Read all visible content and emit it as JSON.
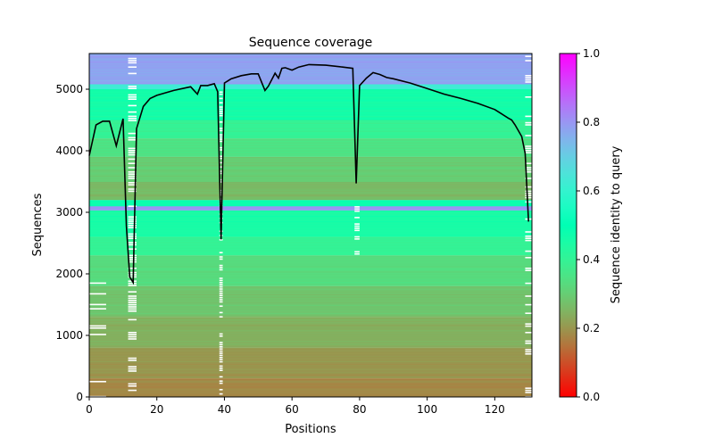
{
  "chart_data": {
    "type": "heatmap",
    "title": "Sequence coverage",
    "xlabel": "Positions",
    "ylabel": "Sequences",
    "xlim": [
      0,
      131
    ],
    "ylim": [
      0,
      5580
    ],
    "x_ticks": [
      0,
      20,
      40,
      60,
      80,
      100,
      120
    ],
    "y_ticks": [
      0,
      1000,
      2000,
      3000,
      4000,
      5000
    ],
    "grid": false,
    "legend": "none",
    "colorbar": {
      "label": "Sequence identity to query",
      "colormap": "rainbow_r",
      "range": [
        0,
        1
      ],
      "ticks": [
        0.0,
        0.2,
        0.4,
        0.6,
        0.8,
        1.0
      ]
    },
    "identity_bands": [
      {
        "seq_start": 0,
        "seq_end": 300,
        "identity": 0.18
      },
      {
        "seq_start": 300,
        "seq_end": 800,
        "identity": 0.2
      },
      {
        "seq_start": 800,
        "seq_end": 1300,
        "identity": 0.24
      },
      {
        "seq_start": 1300,
        "seq_end": 1800,
        "identity": 0.28
      },
      {
        "seq_start": 1800,
        "seq_end": 2300,
        "identity": 0.33
      },
      {
        "seq_start": 2300,
        "seq_end": 2600,
        "identity": 0.4
      },
      {
        "seq_start": 2600,
        "seq_end": 3030,
        "identity": 0.45
      },
      {
        "seq_start": 3030,
        "seq_end": 3100,
        "identity": 0.8
      },
      {
        "seq_start": 3100,
        "seq_end": 3200,
        "identity": 0.48
      },
      {
        "seq_start": 3200,
        "seq_end": 3500,
        "identity": 0.26
      },
      {
        "seq_start": 3500,
        "seq_end": 3900,
        "identity": 0.3
      },
      {
        "seq_start": 3900,
        "seq_end": 4200,
        "identity": 0.34
      },
      {
        "seq_start": 4200,
        "seq_end": 4500,
        "identity": 0.4
      },
      {
        "seq_start": 4500,
        "seq_end": 5000,
        "identity": 0.46
      },
      {
        "seq_start": 5000,
        "seq_end": 5080,
        "identity": 0.62
      },
      {
        "seq_start": 5080,
        "seq_end": 5580,
        "identity": 0.78
      }
    ],
    "coverage": {
      "x": [
        0,
        2,
        4,
        6,
        8,
        10,
        11,
        12,
        13,
        14,
        16,
        18,
        20,
        25,
        30,
        32,
        33,
        35,
        37,
        38,
        39,
        40,
        42,
        45,
        48,
        50,
        52,
        53,
        55,
        56,
        57,
        58,
        60,
        62,
        65,
        70,
        75,
        78,
        79,
        80,
        82,
        84,
        86,
        88,
        90,
        95,
        100,
        105,
        110,
        115,
        120,
        122,
        124,
        125,
        126,
        128,
        129,
        130
      ],
      "y": [
        3920,
        4420,
        4480,
        4480,
        4080,
        4520,
        2780,
        1950,
        1860,
        4360,
        4720,
        4850,
        4900,
        4980,
        5040,
        4920,
        5060,
        5060,
        5090,
        4960,
        2560,
        5100,
        5170,
        5220,
        5250,
        5250,
        4980,
        5050,
        5260,
        5180,
        5340,
        5350,
        5310,
        5360,
        5400,
        5390,
        5360,
        5340,
        3470,
        5060,
        5180,
        5270,
        5240,
        5190,
        5170,
        5100,
        5010,
        4920,
        4850,
        4770,
        4670,
        4600,
        4530,
        4500,
        4420,
        4230,
        3960,
        2850
      ]
    }
  }
}
